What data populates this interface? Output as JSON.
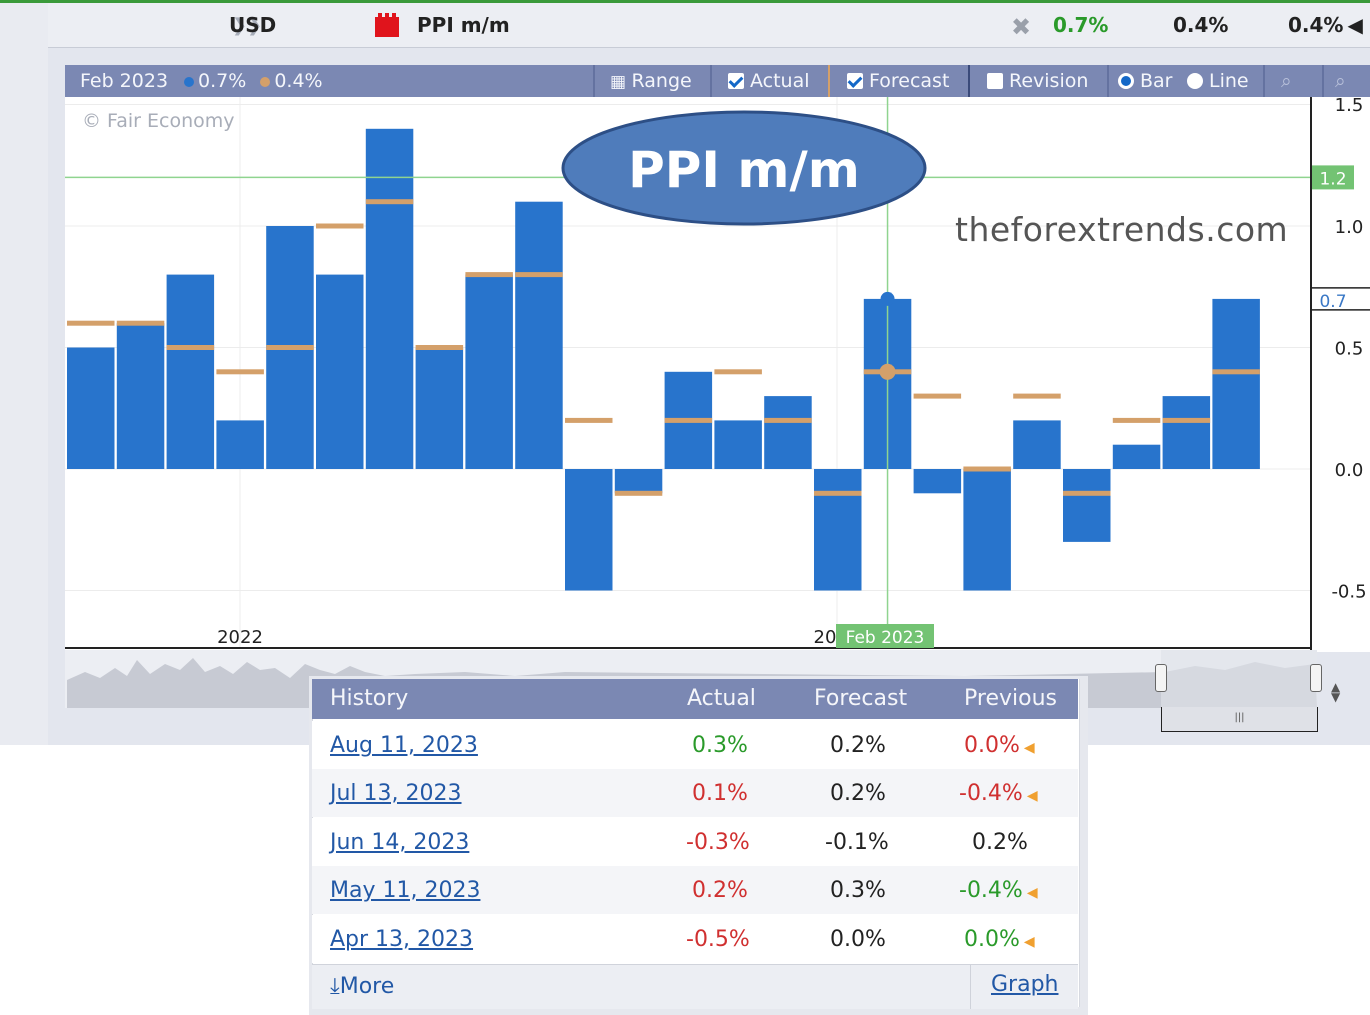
{
  "event": {
    "currency": "USD",
    "name": "PPI m/m",
    "actual": "0.7%",
    "forecast": "0.4%",
    "previous": "0.4%"
  },
  "toolbar": {
    "period": "Feb 2023",
    "actual_legend": "0.7%",
    "forecast_legend": "0.4%",
    "range": "Range",
    "actual": "Actual",
    "forecast": "Forecast",
    "revision": "Revision",
    "bar": "Bar",
    "line": "Line"
  },
  "overlay": {
    "title": "PPI m/m",
    "site": "theforextrends.com",
    "copyright": "© Fair Economy"
  },
  "chart_data": {
    "type": "bar",
    "ylim": [
      -0.75,
      1.5
    ],
    "y_ticks": [
      "1.5",
      "1.0",
      "0.5",
      "0.0",
      "-0.5"
    ],
    "x_labels": [
      "2022",
      "20"
    ],
    "crosshair_label": "Feb 2023",
    "crosshair_value": "1.2",
    "current_value_label": "0.7",
    "series": [
      {
        "name": "Actual",
        "values": [
          0.5,
          0.6,
          0.8,
          0.2,
          1.0,
          0.8,
          1.4,
          0.5,
          0.8,
          1.1,
          -0.5,
          -0.1,
          0.4,
          0.2,
          0.3,
          -0.5,
          0.7,
          -0.1,
          -0.5,
          0.2,
          -0.3,
          0.1,
          0.3,
          0.7
        ]
      },
      {
        "name": "Forecast",
        "values": [
          0.6,
          0.6,
          0.5,
          0.4,
          0.5,
          1.0,
          1.1,
          0.5,
          0.8,
          0.8,
          0.2,
          -0.1,
          0.2,
          0.4,
          0.2,
          -0.1,
          0.4,
          0.3,
          0.0,
          0.3,
          -0.1,
          0.2,
          0.2,
          0.4
        ]
      }
    ]
  },
  "history": {
    "headers": {
      "history": "History",
      "actual": "Actual",
      "forecast": "Forecast",
      "previous": "Previous"
    },
    "rows": [
      {
        "date": "Aug 11, 2023",
        "actual": "0.3%",
        "forecast": "0.2%",
        "previous": "0.0%"
      },
      {
        "date": "Jul 13, 2023",
        "actual": "0.1%",
        "forecast": "0.2%",
        "previous": "-0.4%"
      },
      {
        "date": "Jun 14, 2023",
        "actual": "-0.3%",
        "forecast": "-0.1%",
        "previous": "0.2%"
      },
      {
        "date": "May 11, 2023",
        "actual": "0.2%",
        "forecast": "0.3%",
        "previous": "-0.4%"
      },
      {
        "date": "Apr 13, 2023",
        "actual": "-0.5%",
        "forecast": "0.0%",
        "previous": "0.0%"
      }
    ],
    "more": "More",
    "graph": "Graph"
  },
  "colors": {
    "actual_bar": "#2874cc",
    "forecast_mark": "#d4a06a",
    "header_bg": "#7b88b3",
    "crosshair": "#8fd48f"
  }
}
